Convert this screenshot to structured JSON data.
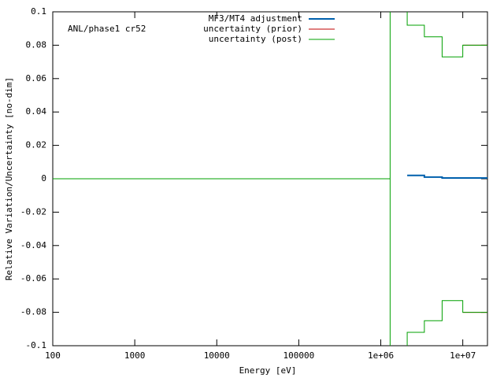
{
  "chart_data": {
    "type": "line",
    "xlabel": "Energy [eV]",
    "ylabel": "Relative Variation/Uncertainty [no-dim]",
    "annotation": "ANL/phase1 cr52",
    "log_x": true,
    "legend": "top-center",
    "xlim": [
      100,
      20000000
    ],
    "xticks": [
      100,
      1000,
      10000,
      100000,
      {
        "value": 1000000,
        "label": "1e+06"
      },
      {
        "value": 10000000,
        "label": "1e+07"
      }
    ],
    "ylim": [
      -0.1,
      0.1
    ],
    "yticks": [
      -0.1,
      -0.08,
      -0.06,
      -0.04,
      -0.02,
      0,
      0.02,
      0.04,
      0.06,
      0.08,
      0.1
    ],
    "series": [
      {
        "name": "MF3/MT4 adjustment",
        "color": "#0060ad",
        "width": 2,
        "x": [
          2100000,
          3400000,
          3400000,
          5600000,
          5600000,
          20000000
        ],
        "values": [
          0.002,
          0.002,
          0.001,
          0.001,
          0.0005,
          0.0005
        ]
      },
      {
        "name": "uncertainty (prior)",
        "color": "#c00000",
        "width": 1,
        "x": [
          10000000,
          20000000,
          null,
          10000000,
          20000000
        ],
        "values": [
          0.08,
          0.08,
          null,
          -0.08,
          -0.08
        ]
      },
      {
        "name": "uncertainty (post)",
        "color": "#00a000",
        "width": 1,
        "x": [
          100,
          1300000,
          null,
          1300000,
          1300000,
          null,
          2100000,
          2100000,
          3400000,
          3400000,
          5600000,
          5600000,
          10000000,
          10000000,
          20000000,
          null,
          2100000,
          2100000,
          3400000,
          3400000,
          5600000,
          5600000,
          10000000,
          10000000,
          20000000
        ],
        "values": [
          0,
          0,
          null,
          0.1,
          -0.1,
          null,
          0.1,
          0.092,
          0.092,
          0.085,
          0.085,
          0.073,
          0.073,
          0.08,
          0.08,
          null,
          -0.1,
          -0.092,
          -0.092,
          -0.085,
          -0.085,
          -0.073,
          -0.073,
          -0.08,
          -0.08
        ]
      }
    ]
  }
}
